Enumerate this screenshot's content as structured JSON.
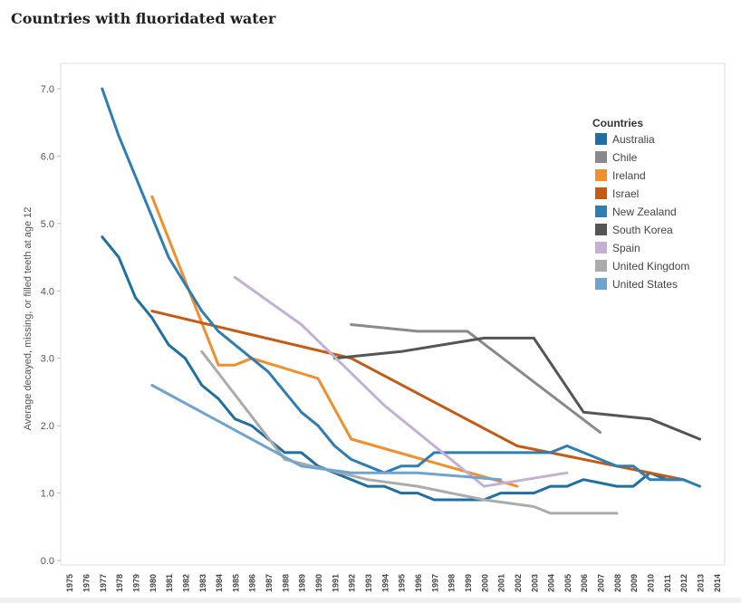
{
  "chart_data": {
    "type": "line",
    "title": "Countries with fluoridated water",
    "xlabel": "",
    "ylabel": "Average decayed, missing, or filled teeth at age 12",
    "xlim": [
      1974.5,
      2014.5
    ],
    "ylim": [
      0,
      7.3
    ],
    "grid": false,
    "legend_title": "Countries",
    "legend_position": "top-right",
    "x_ticks": [
      1975,
      1976,
      1977,
      1978,
      1979,
      1980,
      1981,
      1982,
      1983,
      1984,
      1985,
      1986,
      1987,
      1988,
      1989,
      1990,
      1991,
      1992,
      1993,
      1994,
      1995,
      1996,
      1997,
      1998,
      1999,
      2000,
      2001,
      2002,
      2003,
      2004,
      2005,
      2006,
      2007,
      2008,
      2009,
      2010,
      2011,
      2012,
      2013,
      2014
    ],
    "y_ticks": [
      "0.0",
      "1.0",
      "2.0",
      "3.0",
      "4.0",
      "5.0",
      "6.0",
      "7.0"
    ],
    "series": [
      {
        "name": "Australia",
        "color": "#1f6fa3",
        "x": [
          1977,
          1978,
          1979,
          1980,
          1981,
          1982,
          1983,
          1984,
          1985,
          1986,
          1987,
          1988,
          1989,
          1990,
          1991,
          1992,
          1993,
          1994,
          1995,
          1996,
          1997,
          1998,
          1999,
          2000,
          2001,
          2002,
          2003,
          2004,
          2005,
          2006,
          2007,
          2008,
          2009,
          2010,
          2011,
          2012
        ],
        "y": [
          4.8,
          4.5,
          3.9,
          3.6,
          3.2,
          3.0,
          2.6,
          2.4,
          2.1,
          2.0,
          1.8,
          1.6,
          1.6,
          1.4,
          1.3,
          1.2,
          1.1,
          1.1,
          1.0,
          1.0,
          0.9,
          0.9,
          0.9,
          0.9,
          1.0,
          1.0,
          1.0,
          1.1,
          1.1,
          1.2,
          1.15,
          1.1,
          1.1,
          1.3,
          1.2,
          1.2
        ]
      },
      {
        "name": "Chile",
        "color": "#8a8a8a",
        "x": [
          1992,
          1996,
          1999,
          2007
        ],
        "y": [
          3.5,
          3.4,
          3.4,
          1.9
        ]
      },
      {
        "name": "Ireland",
        "color": "#f28e2b",
        "x": [
          1980,
          1984,
          1985,
          1986,
          1990,
          1992,
          2002
        ],
        "y": [
          5.4,
          2.9,
          2.9,
          3.0,
          2.7,
          1.8,
          1.1
        ]
      },
      {
        "name": "Israel",
        "color": "#c45a13",
        "x": [
          1980,
          1992,
          2002,
          2012
        ],
        "y": [
          3.7,
          3.0,
          1.7,
          1.2
        ]
      },
      {
        "name": "New Zealand",
        "color": "#2e7eb4",
        "x": [
          1977,
          1978,
          1979,
          1980,
          1981,
          1982,
          1983,
          1984,
          1985,
          1986,
          1987,
          1988,
          1989,
          1990,
          1991,
          1992,
          1993,
          1994,
          1995,
          1996,
          1997,
          1998,
          1999,
          2000,
          2001,
          2002,
          2003,
          2004,
          2005,
          2006,
          2007,
          2008,
          2009,
          2010,
          2011,
          2012,
          2013
        ],
        "y": [
          7.0,
          6.3,
          5.7,
          5.1,
          4.5,
          4.1,
          3.7,
          3.4,
          3.2,
          3.0,
          2.8,
          2.5,
          2.2,
          2.0,
          1.7,
          1.5,
          1.4,
          1.3,
          1.4,
          1.4,
          1.6,
          1.6,
          1.6,
          1.6,
          1.6,
          1.6,
          1.6,
          1.6,
          1.7,
          1.6,
          1.5,
          1.4,
          1.4,
          1.2,
          1.2,
          1.2,
          1.1
        ]
      },
      {
        "name": "South Korea",
        "color": "#555555",
        "x": [
          1991,
          1995,
          2000,
          2003,
          2006,
          2010,
          2013
        ],
        "y": [
          3.0,
          3.1,
          3.3,
          3.3,
          2.2,
          2.1,
          1.8
        ]
      },
      {
        "name": "Spain",
        "color": "#c5b0d5",
        "x": [
          1985,
          1989,
          1994,
          2000,
          2005
        ],
        "y": [
          4.2,
          3.5,
          2.3,
          1.1,
          1.3
        ]
      },
      {
        "name": "United Kingdom",
        "color": "#ababab",
        "x": [
          1983,
          1988,
          1993,
          1996,
          2000,
          2003,
          2004,
          2008
        ],
        "y": [
          3.1,
          1.5,
          1.2,
          1.1,
          0.9,
          0.8,
          0.7,
          0.7
        ]
      },
      {
        "name": "United States",
        "color": "#6fa3d2",
        "x": [
          1980,
          1989,
          1992,
          1996,
          2001
        ],
        "y": [
          2.6,
          1.4,
          1.3,
          1.3,
          1.2
        ]
      }
    ]
  }
}
